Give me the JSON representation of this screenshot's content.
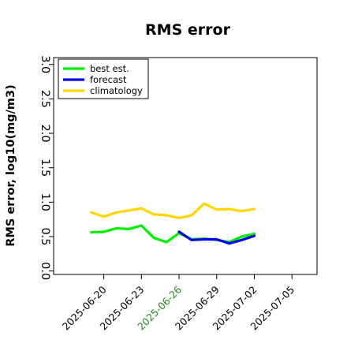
{
  "chart_data": {
    "type": "line",
    "title": "RMS error",
    "xlabel": "",
    "ylabel": "RMS error, log10(mg/m3)",
    "xlim": [
      "2025-06-16",
      "2025-07-07"
    ],
    "ylim": [
      -0.05,
      3.1
    ],
    "yticks": [
      "0.0",
      "0.5",
      "1.0",
      "1.5",
      "2.0",
      "2.5",
      "3.0"
    ],
    "xticks": [
      {
        "label": "2025-06-20",
        "date": "2025-06-20",
        "color": "#000000"
      },
      {
        "label": "2025-06-23",
        "date": "2025-06-23",
        "color": "#000000"
      },
      {
        "label": "2025-06-26",
        "date": "2025-06-26",
        "color": "#228B22"
      },
      {
        "label": "2025-06-29",
        "date": "2025-06-29",
        "color": "#000000"
      },
      {
        "label": "2025-07-02",
        "date": "2025-07-02",
        "color": "#000000"
      },
      {
        "label": "2025-07-05",
        "date": "2025-07-05",
        "color": "#000000"
      }
    ],
    "grid": false,
    "legend_position": "top-left",
    "series": [
      {
        "name": "best est.",
        "color": "#00ee00",
        "x": [
          "2025-06-19",
          "2025-06-20",
          "2025-06-21",
          "2025-06-22",
          "2025-06-23",
          "2025-06-24",
          "2025-06-25",
          "2025-06-26",
          "2025-06-27",
          "2025-06-28",
          "2025-06-29",
          "2025-06-30",
          "2025-07-01",
          "2025-07-02"
        ],
        "y": [
          0.56,
          0.57,
          0.62,
          0.61,
          0.66,
          0.48,
          0.42,
          0.55,
          0.46,
          0.47,
          0.45,
          0.42,
          0.5,
          0.54
        ]
      },
      {
        "name": "forecast",
        "color": "#0000ee",
        "x": [
          "2025-06-26",
          "2025-06-27",
          "2025-06-28",
          "2025-06-29",
          "2025-06-30",
          "2025-07-01",
          "2025-07-02"
        ],
        "y": [
          0.57,
          0.45,
          0.46,
          0.46,
          0.4,
          0.45,
          0.51
        ]
      },
      {
        "name": "climatology",
        "color": "#ffd700",
        "x": [
          "2025-06-19",
          "2025-06-20",
          "2025-06-21",
          "2025-06-22",
          "2025-06-23",
          "2025-06-24",
          "2025-06-25",
          "2025-06-26",
          "2025-06-27",
          "2025-06-28",
          "2025-06-29",
          "2025-06-30",
          "2025-07-01",
          "2025-07-02"
        ],
        "y": [
          0.85,
          0.79,
          0.85,
          0.88,
          0.91,
          0.82,
          0.81,
          0.77,
          0.81,
          0.98,
          0.89,
          0.9,
          0.87,
          0.9
        ]
      }
    ]
  }
}
